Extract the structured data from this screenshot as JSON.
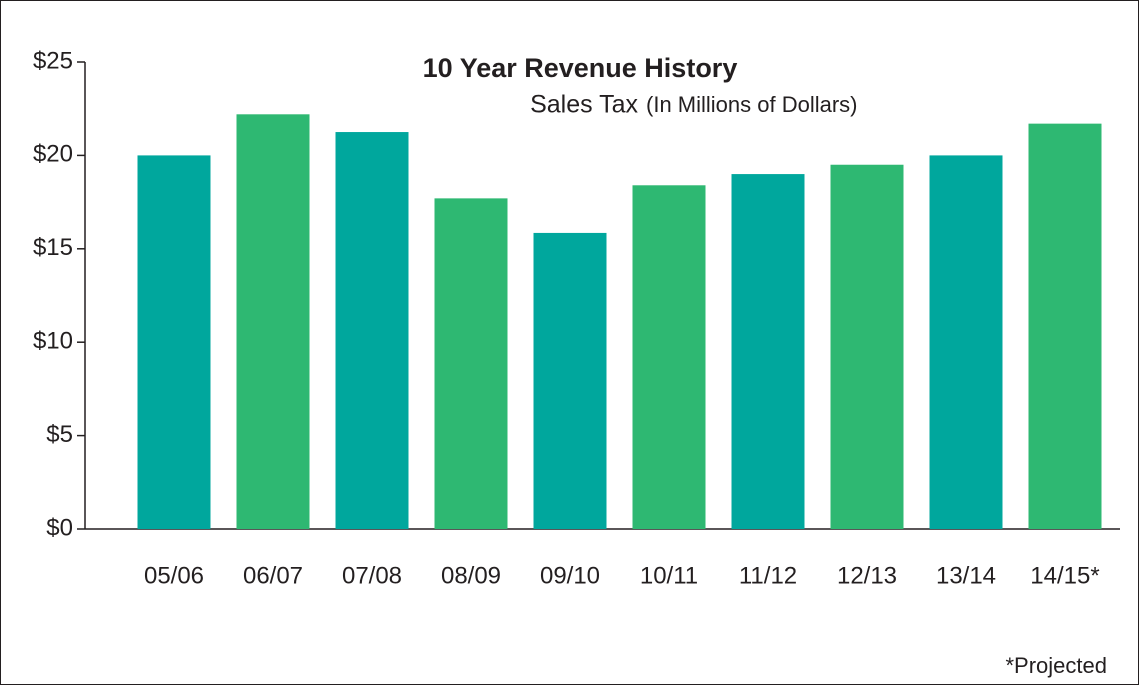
{
  "chart_data": {
    "type": "bar",
    "title": "10 Year Revenue History",
    "subtitle": "Sales Tax",
    "units": "(In Millions of Dollars)",
    "annotation": "*Projected",
    "categories": [
      "05/06",
      "06/07",
      "07/08",
      "08/09",
      "09/10",
      "10/11",
      "11/12",
      "12/13",
      "13/14",
      "14/15*"
    ],
    "values": [
      20.0,
      22.2,
      21.25,
      17.7,
      15.85,
      18.4,
      19.0,
      19.5,
      20.0,
      21.7
    ],
    "colors": [
      "#00a79d",
      "#2eb872",
      "#00a79d",
      "#2eb872",
      "#00a79d",
      "#2eb872",
      "#00a79d",
      "#2eb872",
      "#00a79d",
      "#2eb872"
    ],
    "ylim": [
      0,
      25
    ],
    "yticks": [
      {
        "value": 0,
        "label": "$0"
      },
      {
        "value": 5,
        "label": "$5"
      },
      {
        "value": 10,
        "label": "$10"
      },
      {
        "value": 15,
        "label": "$15"
      },
      {
        "value": 20,
        "label": "$20"
      },
      {
        "value": 25,
        "label": "$25"
      }
    ],
    "grid": false
  }
}
